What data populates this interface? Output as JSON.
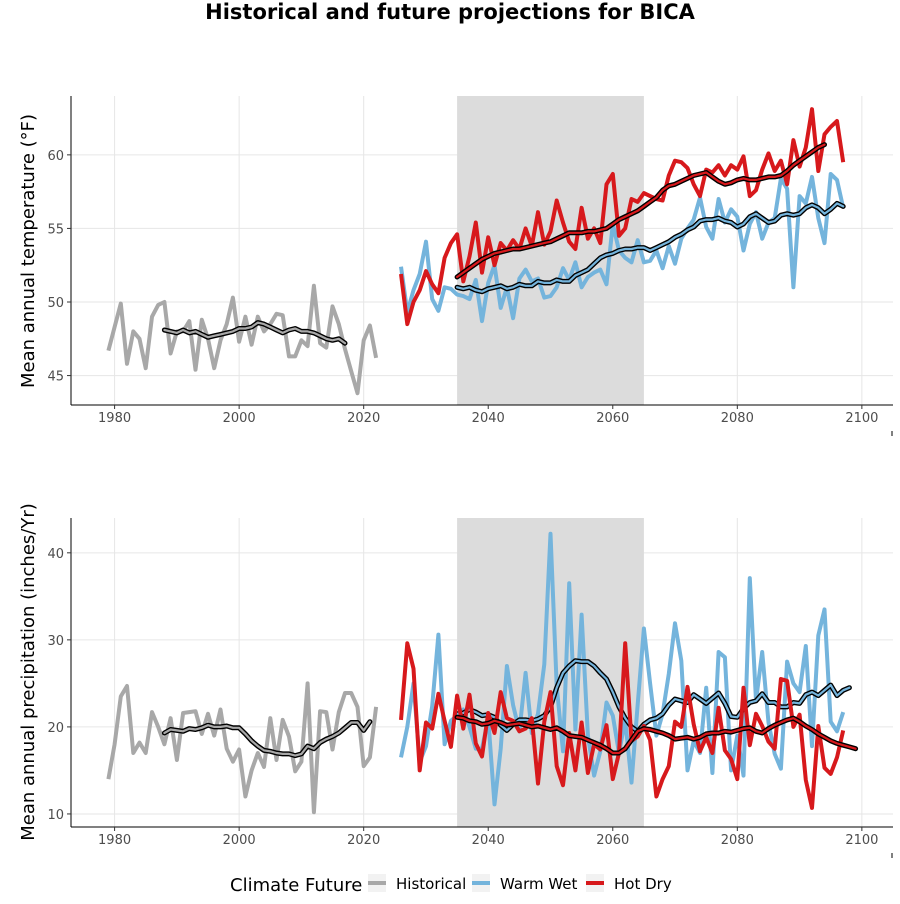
{
  "title": "Historical and future projections for BICA",
  "colors": {
    "historical": "#a8a8a8",
    "warm_wet": "#74b4dc",
    "hot_dry": "#d7191c",
    "smooth_outline": "#000000",
    "shade": "#dcdcdc",
    "grid": "#e6e6e6"
  },
  "legend": {
    "title": "Climate Future",
    "items": [
      {
        "label": "Historical",
        "color": "#a8a8a8"
      },
      {
        "label": "Warm Wet",
        "color": "#74b4dc"
      },
      {
        "label": "Hot Dry",
        "color": "#d7191c"
      }
    ]
  },
  "chart_data": [
    {
      "type": "line",
      "ylabel": "Mean annual temperature (°F)",
      "xlim": [
        1973,
        2105
      ],
      "ylim": [
        43,
        64
      ],
      "xticks": [
        1980,
        2000,
        2020,
        2040,
        2060,
        2080,
        2100
      ],
      "yticks": [
        45,
        50,
        55,
        60
      ],
      "shaded_x": [
        2035,
        2065
      ],
      "series": [
        {
          "name": "Historical",
          "key": "historical",
          "start": 1979,
          "values": [
            46.7,
            48.3,
            49.9,
            45.8,
            48.0,
            47.5,
            45.5,
            49.0,
            49.8,
            50.0,
            46.5,
            48.0,
            48.0,
            48.7,
            45.4,
            48.8,
            47.5,
            45.5,
            47.4,
            48.5,
            50.3,
            47.3,
            49.0,
            47.1,
            49.0,
            48.0,
            48.5,
            49.2,
            49.1,
            46.3,
            46.3,
            47.4,
            47.0,
            51.1,
            47.2,
            46.9,
            49.7,
            48.5,
            46.8,
            45.3,
            43.8,
            47.4,
            48.4,
            46.2
          ]
        },
        {
          "name": "Historical (rolling mean)",
          "key": "historical",
          "smooth": true,
          "start": 1988,
          "values": [
            48.1,
            48.0,
            47.9,
            48.1,
            47.9,
            48.0,
            47.8,
            47.6,
            47.7,
            47.8,
            47.9,
            48.0,
            48.2,
            48.2,
            48.3,
            48.6,
            48.5,
            48.3,
            48.1,
            47.9,
            48.1,
            48.2,
            48.0,
            48.0,
            47.9,
            47.7,
            47.5,
            47.4,
            47.5,
            47.2
          ]
        },
        {
          "name": "Warm Wet",
          "key": "warm_wet",
          "start": 2026,
          "values": [
            52.4,
            49.3,
            50.8,
            51.9,
            54.1,
            50.2,
            49.4,
            51.0,
            50.9,
            50.5,
            50.4,
            50.2,
            51.5,
            48.7,
            51.3,
            52.5,
            49.6,
            51.0,
            48.9,
            51.6,
            52.2,
            51.4,
            51.6,
            50.3,
            50.4,
            51.0,
            52.3,
            51.5,
            52.7,
            51.0,
            51.7,
            52.0,
            52.2,
            51.2,
            55.3,
            53.5,
            53.0,
            52.7,
            54.2,
            52.7,
            52.8,
            53.5,
            52.3,
            53.8,
            52.6,
            54.3,
            55.0,
            55.6,
            57.1,
            55.1,
            54.3,
            57.0,
            55.4,
            56.3,
            55.8,
            53.5,
            55.3,
            56.1,
            54.3,
            55.4,
            55.7,
            58.4,
            57.7,
            51.0,
            57.2,
            56.7,
            58.5,
            55.7,
            54.0,
            58.7,
            58.3,
            56.4
          ]
        },
        {
          "name": "Warm Wet (rolling mean)",
          "key": "warm_wet",
          "smooth": true,
          "start": 2035,
          "values": [
            51.0,
            50.9,
            51.0,
            50.8,
            50.7,
            50.9,
            51.0,
            51.1,
            50.9,
            51.0,
            51.2,
            51.1,
            51.1,
            51.4,
            51.3,
            51.3,
            51.5,
            51.4,
            51.4,
            51.8,
            52.0,
            52.2,
            52.6,
            53.0,
            53.2,
            53.3,
            53.5,
            53.6,
            53.6,
            53.7,
            53.7,
            53.5,
            53.7,
            53.9,
            54.1,
            54.4,
            54.6,
            54.9,
            55.1,
            55.5,
            55.6,
            55.6,
            55.7,
            55.5,
            55.4,
            55.1,
            55.3,
            55.8,
            56.0,
            55.7,
            55.4,
            55.5,
            55.9,
            56.0,
            55.9,
            56.0,
            56.4,
            56.6,
            56.4,
            56.0,
            56.3,
            56.7,
            56.5
          ]
        },
        {
          "name": "Hot Dry",
          "key": "hot_dry",
          "start": 2026,
          "values": [
            51.9,
            48.5,
            50.0,
            50.8,
            52.1,
            51.2,
            50.6,
            53.0,
            54.0,
            54.6,
            51.4,
            53.1,
            55.4,
            52.0,
            54.4,
            52.5,
            54.0,
            53.5,
            54.2,
            53.6,
            55.0,
            53.8,
            56.1,
            53.9,
            54.8,
            56.9,
            55.4,
            54.1,
            53.6,
            56.4,
            54.3,
            55.0,
            54.0,
            58.0,
            58.7,
            54.5,
            55.0,
            57.0,
            56.8,
            57.4,
            57.2,
            57.0,
            56.9,
            58.6,
            59.6,
            59.5,
            59.1,
            58.0,
            57.2,
            59.0,
            58.8,
            59.3,
            58.6,
            59.3,
            59.0,
            59.9,
            57.2,
            57.6,
            59.0,
            60.1,
            58.9,
            59.6,
            58.0,
            61.0,
            59.2,
            60.5,
            63.1,
            58.9,
            61.4,
            61.9,
            62.3,
            59.5
          ]
        },
        {
          "name": "Hot Dry (rolling mean)",
          "key": "hot_dry",
          "smooth": true,
          "start": 2035,
          "values": [
            51.7,
            52.0,
            52.3,
            52.6,
            52.9,
            53.1,
            53.3,
            53.4,
            53.5,
            53.6,
            53.6,
            53.7,
            53.8,
            53.9,
            54.0,
            54.1,
            54.3,
            54.5,
            54.7,
            54.7,
            54.7,
            54.8,
            54.8,
            54.9,
            55.0,
            55.3,
            55.6,
            55.8,
            56.0,
            56.2,
            56.5,
            56.8,
            57.1,
            57.6,
            57.9,
            58.0,
            58.2,
            58.4,
            58.6,
            58.7,
            58.8,
            58.5,
            58.2,
            58.0,
            58.1,
            58.3,
            58.4,
            58.3,
            58.3,
            58.4,
            58.5,
            58.5,
            58.6,
            58.9,
            59.3,
            59.6,
            59.9,
            60.2,
            60.5,
            60.7
          ]
        }
      ]
    },
    {
      "type": "line",
      "ylabel": "Mean annual precipitation (inches/Yr)",
      "xlim": [
        1973,
        2105
      ],
      "ylim": [
        8.5,
        44
      ],
      "xticks": [
        1980,
        2000,
        2020,
        2040,
        2060,
        2080,
        2100
      ],
      "yticks": [
        10,
        20,
        30,
        40
      ],
      "shaded_x": [
        2035,
        2065
      ],
      "series": [
        {
          "name": "Historical",
          "key": "historical",
          "start": 1979,
          "values": [
            14.0,
            18.0,
            23.5,
            24.7,
            17.0,
            18.2,
            17.0,
            21.7,
            20.0,
            18.0,
            21.0,
            16.2,
            21.6,
            21.7,
            21.8,
            19.2,
            21.5,
            19.0,
            22.0,
            17.5,
            16.0,
            17.4,
            12.0,
            15.0,
            17.0,
            15.4,
            21.0,
            16.2,
            20.8,
            18.9,
            14.9,
            16.0,
            25.0,
            10.2,
            21.8,
            21.7,
            17.4,
            21.7,
            23.9,
            23.9,
            22.3,
            15.5,
            16.5,
            22.3
          ]
        },
        {
          "name": "Historical (rolling mean)",
          "key": "historical",
          "smooth": true,
          "start": 1988,
          "values": [
            19.3,
            19.7,
            19.6,
            19.5,
            19.8,
            19.7,
            19.9,
            20.2,
            20.0,
            20.0,
            20.1,
            19.9,
            19.9,
            19.2,
            18.4,
            17.8,
            17.3,
            17.2,
            17.0,
            16.9,
            16.9,
            16.7,
            16.9,
            17.8,
            17.5,
            18.2,
            18.6,
            18.9,
            19.3,
            19.9,
            20.5,
            20.5,
            19.6,
            20.6
          ]
        },
        {
          "name": "Warm Wet",
          "key": "warm_wet",
          "start": 2026,
          "values": [
            16.5,
            20.0,
            25.0,
            16.0,
            17.8,
            22.4,
            30.6,
            18.0,
            20.7,
            21.3,
            22.0,
            20.0,
            17.5,
            17.5,
            21.0,
            11.1,
            17.5,
            27.0,
            22.5,
            19.5,
            26.2,
            19.3,
            21.5,
            27.2,
            42.2,
            24.7,
            17.2,
            36.5,
            19.7,
            32.9,
            19.0,
            14.4,
            17.2,
            22.8,
            21.3,
            17.0,
            20.8,
            13.6,
            22.6,
            31.3,
            25.0,
            19.0,
            21.5,
            26.1,
            31.9,
            27.6,
            15.0,
            18.4,
            17.0,
            24.5,
            14.7,
            28.6,
            28.0,
            15.0,
            19.0,
            14.4,
            37.1,
            23.0,
            28.6,
            20.5,
            16.9,
            15.2,
            27.5,
            25.0,
            24.0,
            29.3,
            17.8,
            30.5,
            33.5,
            20.6,
            19.5,
            21.7
          ]
        },
        {
          "name": "Warm Wet (rolling mean)",
          "key": "warm_wet",
          "smooth": true,
          "start": 2035,
          "values": [
            21.5,
            21.6,
            22.0,
            21.7,
            21.3,
            21.4,
            21.1,
            20.2,
            19.6,
            20.3,
            20.8,
            20.8,
            20.7,
            20.9,
            21.3,
            22.3,
            24.5,
            26.2,
            27.0,
            27.6,
            27.5,
            27.5,
            27.0,
            26.2,
            25.5,
            24.0,
            22.3,
            21.0,
            20.0,
            19.5,
            20.3,
            20.8,
            21.0,
            21.5,
            22.5,
            23.2,
            23.0,
            22.8,
            23.7,
            23.2,
            22.7,
            23.3,
            23.9,
            22.7,
            21.2,
            21.1,
            22.1,
            22.8,
            23.0,
            23.8,
            22.8,
            22.8,
            22.3,
            22.3,
            22.8,
            22.7,
            23.7,
            24.0,
            23.6,
            24.2,
            24.8,
            23.6,
            24.2,
            24.5
          ]
        },
        {
          "name": "Hot Dry",
          "key": "hot_dry",
          "start": 2026,
          "values": [
            20.8,
            29.6,
            26.7,
            15.0,
            20.5,
            19.8,
            23.8,
            20.7,
            17.7,
            23.6,
            19.8,
            23.7,
            18.1,
            16.6,
            21.6,
            19.3,
            24.0,
            21.0,
            20.7,
            19.5,
            19.8,
            21.0,
            13.5,
            20.6,
            24.0,
            15.5,
            13.3,
            19.3,
            15.0,
            20.5,
            14.7,
            18.0,
            17.4,
            20.2,
            14.0,
            17.0,
            29.6,
            18.4,
            18.9,
            20.1,
            18.5,
            12.0,
            14.0,
            15.5,
            20.6,
            20.0,
            24.6,
            20.3,
            17.2,
            18.8,
            17.0,
            22.2,
            17.3,
            16.3,
            14.0,
            24.5,
            17.9,
            21.5,
            20.1,
            18.3,
            17.5,
            25.5,
            25.3,
            20.0,
            21.4,
            13.9,
            10.7,
            20.1,
            15.3,
            14.6,
            16.5,
            19.6
          ]
        },
        {
          "name": "Hot Dry (rolling mean)",
          "key": "hot_dry",
          "smooth": true,
          "start": 2035,
          "values": [
            21.1,
            21.0,
            20.7,
            20.6,
            20.3,
            20.4,
            20.7,
            20.5,
            20.2,
            20.3,
            20.4,
            20.2,
            20.0,
            20.1,
            19.9,
            19.7,
            19.9,
            19.5,
            19.0,
            18.9,
            18.8,
            18.5,
            18.2,
            17.9,
            17.5,
            17.0,
            17.0,
            17.5,
            18.5,
            19.5,
            19.8,
            19.7,
            19.5,
            19.3,
            19.0,
            18.6,
            18.7,
            18.8,
            18.6,
            18.8,
            19.2,
            19.3,
            19.3,
            19.5,
            19.4,
            19.6,
            19.8,
            19.9,
            19.5,
            19.3,
            19.8,
            20.2,
            20.5,
            20.8,
            21.0,
            20.6,
            20.1,
            19.7,
            19.2,
            18.8,
            18.4,
            18.1,
            17.9,
            17.7,
            17.5
          ]
        }
      ]
    }
  ]
}
